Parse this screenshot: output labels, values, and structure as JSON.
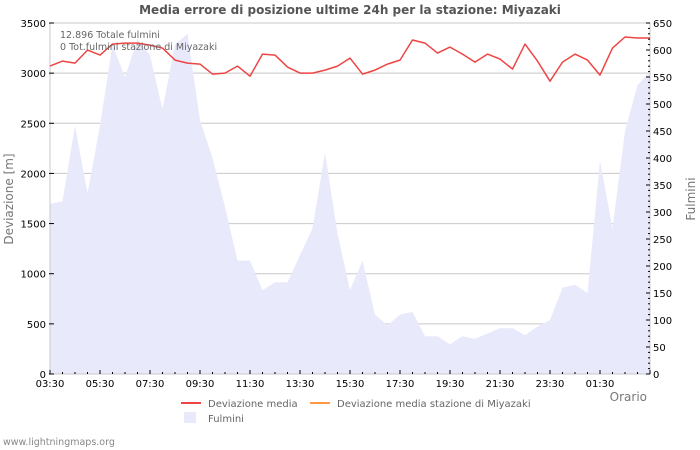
{
  "chart_data": {
    "type": "line",
    "title": "Media errore di posizione ultime 24h per la stazione: Miyazaki",
    "xlabel": "Orario",
    "ylabel": "Deviazione  [m]",
    "y2label": "Fulmini",
    "ylim": [
      0,
      3500
    ],
    "y2lim": [
      0,
      650
    ],
    "yticks": [
      0,
      500,
      1000,
      1500,
      2000,
      2500,
      3000,
      3500
    ],
    "y2ticks": [
      0,
      50,
      100,
      150,
      200,
      250,
      300,
      350,
      400,
      450,
      500,
      550,
      600,
      650
    ],
    "xtick_labels": [
      "03:30",
      "05:30",
      "07:30",
      "09:30",
      "11:30",
      "13:30",
      "15:30",
      "17:30",
      "19:30",
      "21:30",
      "23:30",
      "01:30"
    ],
    "grid": true,
    "legend_position": "bottom",
    "annotations": [
      "12.896 Totale fulmini",
      "0 Tot.fulmini stazione di Miyazaki"
    ],
    "x": [
      "03:30",
      "04:00",
      "04:30",
      "05:00",
      "05:30",
      "06:00",
      "06:30",
      "07:00",
      "07:30",
      "08:00",
      "08:30",
      "09:00",
      "09:30",
      "10:00",
      "10:30",
      "11:00",
      "11:30",
      "12:00",
      "12:30",
      "13:00",
      "13:30",
      "14:00",
      "14:30",
      "15:00",
      "15:30",
      "16:00",
      "16:30",
      "17:00",
      "17:30",
      "18:00",
      "18:30",
      "19:00",
      "19:30",
      "20:00",
      "20:30",
      "21:00",
      "21:30",
      "22:00",
      "22:30",
      "23:00",
      "23:30",
      "00:00",
      "00:30",
      "01:00",
      "01:30",
      "02:00",
      "02:30",
      "03:00",
      "03:20"
    ],
    "series": [
      {
        "name": "Deviazione media",
        "axis": "left",
        "color": "#ee4444",
        "values": [
          3070,
          3120,
          3100,
          3230,
          3180,
          3290,
          3300,
          3300,
          3280,
          3250,
          3130,
          3100,
          3090,
          2990,
          3000,
          3070,
          2970,
          3190,
          3180,
          3060,
          3000,
          3000,
          3030,
          3070,
          3150,
          2990,
          3030,
          3090,
          3130,
          3330,
          3300,
          3200,
          3260,
          3190,
          3110,
          3190,
          3140,
          3040,
          3290,
          3120,
          2920,
          3110,
          3190,
          3130,
          2980,
          3250,
          3360,
          3350,
          3350
        ]
      },
      {
        "name": "Deviazione media stazione di Miyazaki",
        "axis": "left",
        "color": "#ff9944",
        "values": []
      },
      {
        "name": "Fulmini",
        "axis": "right",
        "type": "area",
        "color": "#e9e9fc",
        "values": [
          315,
          320,
          460,
          335,
          460,
          610,
          550,
          620,
          590,
          490,
          610,
          630,
          470,
          400,
          310,
          210,
          210,
          155,
          170,
          170,
          220,
          270,
          410,
          260,
          155,
          210,
          110,
          90,
          110,
          115,
          70,
          70,
          55,
          70,
          65,
          75,
          85,
          85,
          72,
          88,
          100,
          160,
          165,
          150,
          395,
          270,
          450,
          535,
          560
        ]
      }
    ]
  },
  "legend": {
    "items": [
      {
        "label": "Deviazione media",
        "color": "#ee4444",
        "kind": "line"
      },
      {
        "label": "Deviazione media stazione di Miyazaki",
        "color": "#ff9944",
        "kind": "line"
      },
      {
        "label": "Fulmini",
        "color": "#e9e9fc",
        "kind": "box"
      }
    ]
  },
  "footer": "www.lightningmaps.org"
}
